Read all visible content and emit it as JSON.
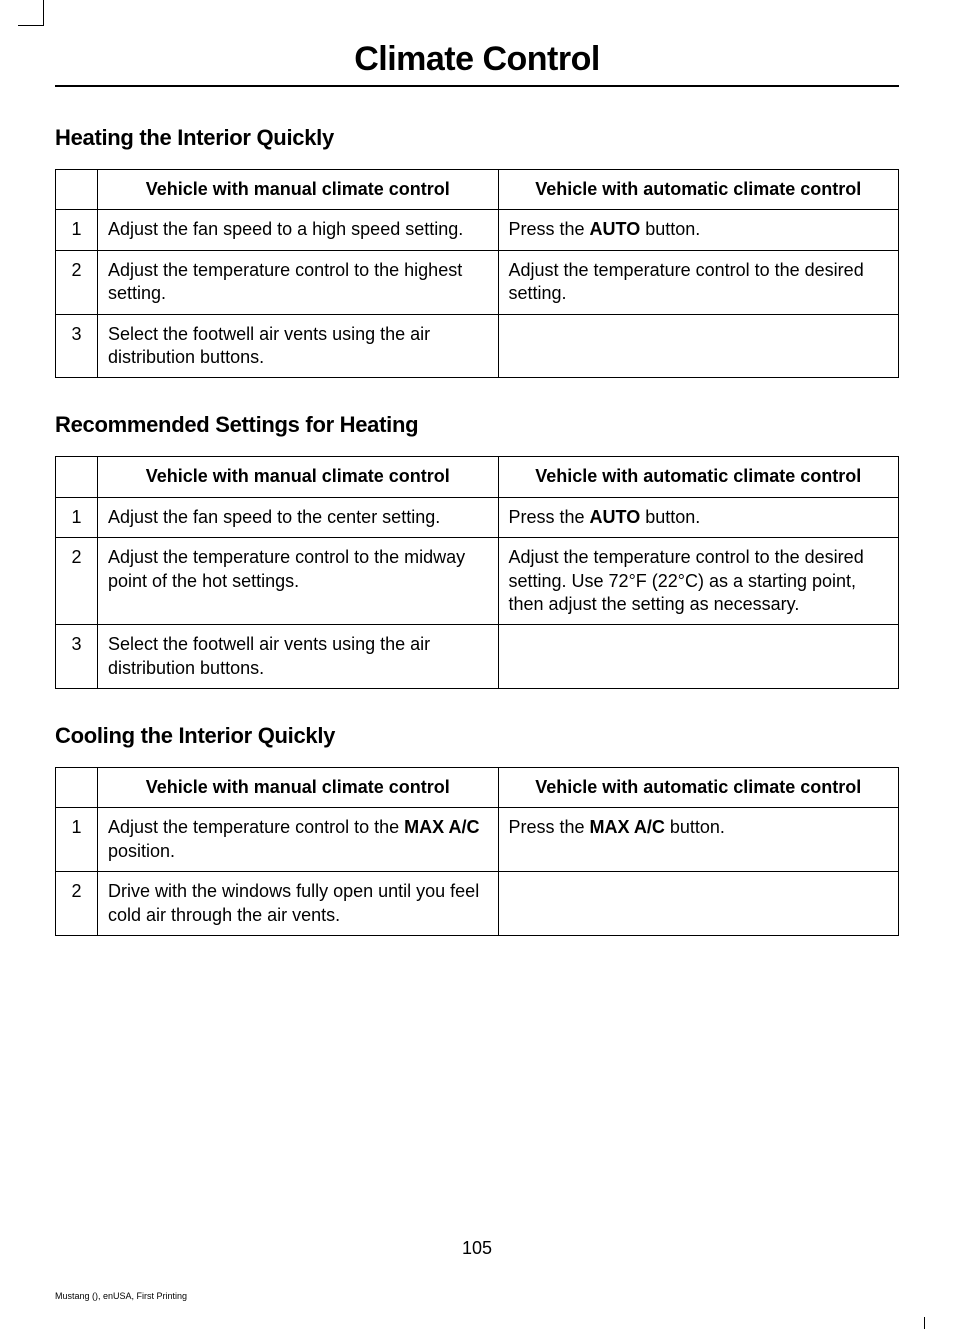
{
  "chapter_title": "Climate Control",
  "page_number": "105",
  "footer_text": "Mustang (), enUSA, First Printing",
  "sections": [
    {
      "heading": "Heating the Interior Quickly",
      "col_manual": "Vehicle with manual climate control",
      "col_auto": "Vehicle with automatic climate control",
      "rows": [
        {
          "n": "1",
          "manual": "Adjust the fan speed to a high speed setting.",
          "auto_pre": "Press the ",
          "auto_bold": "AUTO",
          "auto_post": " button."
        },
        {
          "n": "2",
          "manual": "Adjust the temperature control to the highest setting.",
          "auto_pre": "Adjust the temperature control to the desired setting.",
          "auto_bold": "",
          "auto_post": ""
        },
        {
          "n": "3",
          "manual": "Select the footwell air vents using the air distribution buttons.",
          "auto_pre": "",
          "auto_bold": "",
          "auto_post": ""
        }
      ]
    },
    {
      "heading": "Recommended Settings for Heating",
      "col_manual": "Vehicle with manual climate control",
      "col_auto": "Vehicle with automatic climate control",
      "rows": [
        {
          "n": "1",
          "manual": "Adjust the fan speed to the center setting.",
          "auto_pre": "Press the ",
          "auto_bold": "AUTO",
          "auto_post": " button."
        },
        {
          "n": "2",
          "manual": "Adjust the temperature control to the midway point of the hot settings.",
          "auto_pre": "Adjust the temperature control to the desired setting. Use 72°F (22°C) as a starting point, then adjust the setting as necessary.",
          "auto_bold": "",
          "auto_post": ""
        },
        {
          "n": "3",
          "manual": "Select the footwell air vents using the air distribution buttons.",
          "auto_pre": "",
          "auto_bold": "",
          "auto_post": ""
        }
      ]
    },
    {
      "heading": "Cooling the Interior Quickly",
      "col_manual": "Vehicle with manual climate control",
      "col_auto": "Vehicle with automatic climate control",
      "rows": [
        {
          "n": "1",
          "manual_pre": "Adjust the temperature control to the ",
          "manual_bold": "MAX A/C",
          "manual_post": " position.",
          "auto_pre": "Press the ",
          "auto_bold": "MAX A/C",
          "auto_post": " button."
        },
        {
          "n": "2",
          "manual_pre": "Drive with the windows fully open until you feel cold air through the air vents.",
          "manual_bold": "",
          "manual_post": "",
          "auto_pre": "",
          "auto_bold": "",
          "auto_post": ""
        }
      ]
    }
  ]
}
